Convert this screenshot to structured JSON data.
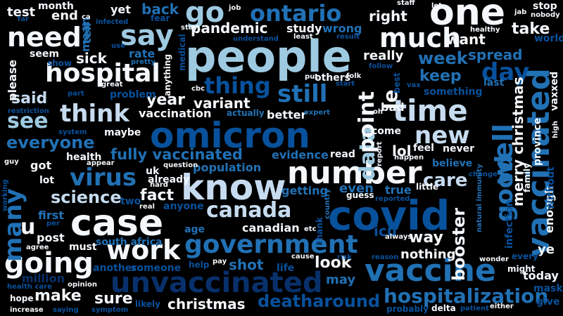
{
  "colors": {
    "background": "#000000",
    "white": "#f4f8fc",
    "pale": "#c6dbef",
    "light": "#9ecae1",
    "mid": "#4292c6",
    "blue": "#2171b5",
    "dark": "#08519c",
    "navy": "#08306b"
  },
  "words": [
    "people",
    "omicron",
    "covid",
    "vaccine",
    "one",
    "vaccinated",
    "case",
    "know",
    "number",
    "unvaccinated",
    "hospital",
    "government",
    "going",
    "work",
    "time",
    "need",
    "say",
    "go",
    "ontario",
    "much",
    "canada",
    "virus",
    "data",
    "still",
    "thing",
    "many",
    "good",
    "well",
    "think",
    "new",
    "see",
    "hospitalization",
    "day",
    "said",
    "everyone",
    "fully vaccinated",
    "science",
    "christmas",
    "deatharound",
    "point",
    "le",
    "year",
    "fact",
    "u",
    "booster",
    "icu",
    "merry christmas",
    "right",
    "take",
    "sick",
    "week",
    "keep",
    "want",
    "spread",
    "look",
    "care",
    "make",
    "sure",
    "may",
    "shot",
    "way",
    "nothing",
    "even",
    "true",
    "today",
    "ye",
    "mask",
    "give",
    "variant",
    "vaccination",
    "population",
    "evidence",
    "canadian",
    "pandemic",
    "study",
    "wrong",
    "really",
    "better",
    "back",
    "end",
    "test",
    "month",
    "mean",
    "tell",
    "yet",
    "lol",
    "come",
    "getting",
    "first",
    "post",
    "must",
    "got",
    "lot",
    "uk",
    "already",
    "south africa",
    "million",
    "another",
    "someone",
    "anyone",
    "two",
    "stop",
    "nobody",
    "healthy",
    "vaxxed",
    "enough",
    "without",
    "world",
    "last",
    "something",
    "province",
    "family",
    "infection",
    "every",
    "might",
    "wonder",
    "feel",
    "never",
    "believe",
    "little",
    "guess",
    "read",
    "life",
    "help",
    "pay",
    "cause",
    "risk",
    "age",
    "thank",
    "country",
    "etc",
    "always",
    "reason",
    "reported",
    "others",
    "folk",
    "best",
    "bad",
    "oh",
    "maybe",
    "please",
    "show",
    "restriction",
    "system",
    "seem",
    "rate",
    "pretty",
    "problem",
    "great",
    "part",
    "hope",
    "increase",
    "health care",
    "opinion",
    "saying",
    "symptom",
    "likely",
    "probably",
    "delta",
    "patient",
    "either",
    "guy",
    "working",
    "per",
    "agree",
    "real",
    "hard",
    "question",
    "appear",
    "health",
    "medical",
    "anything",
    "cbc",
    "stay",
    "understand",
    "least",
    "result",
    "job",
    "infected",
    "fear",
    "ca",
    "far",
    "use",
    "actually",
    "expert",
    "put",
    "start",
    "follow",
    "vax",
    "jab",
    "let",
    "staff",
    "happen",
    "report",
    "change",
    "natural immunity",
    "high"
  ]
}
